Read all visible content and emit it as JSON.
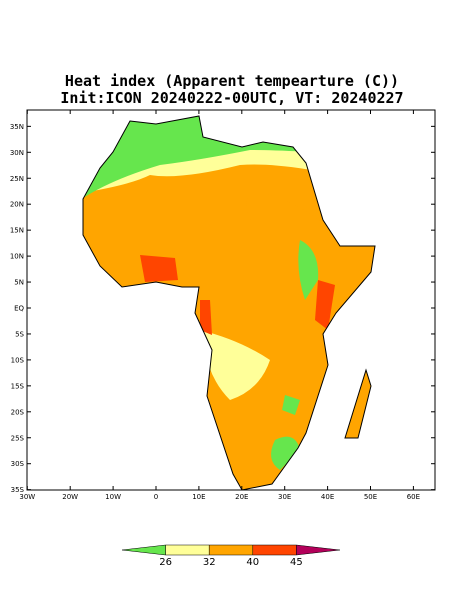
{
  "title": {
    "line1": "Heat index (Apparent tempearture (C))",
    "line2": "Init:ICON 20240222-00UTC, VT: 20240227"
  },
  "lat_ticks": [
    {
      "value": 35,
      "label": "35N"
    },
    {
      "value": 30,
      "label": "30N"
    },
    {
      "value": 25,
      "label": "25N"
    },
    {
      "value": 20,
      "label": "20N"
    },
    {
      "value": 15,
      "label": "15N"
    },
    {
      "value": 10,
      "label": "10N"
    },
    {
      "value": 5,
      "label": "5N"
    },
    {
      "value": 0,
      "label": "EQ"
    },
    {
      "value": -5,
      "label": "5S"
    },
    {
      "value": -10,
      "label": "10S"
    },
    {
      "value": -15,
      "label": "15S"
    },
    {
      "value": -20,
      "label": "20S"
    },
    {
      "value": -25,
      "label": "25S"
    },
    {
      "value": -30,
      "label": "30S"
    },
    {
      "value": -35,
      "label": "35S"
    }
  ],
  "lon_ticks": [
    {
      "value": -30,
      "label": "30W"
    },
    {
      "value": -20,
      "label": "20W"
    },
    {
      "value": -10,
      "label": "10W"
    },
    {
      "value": 0,
      "label": "0"
    },
    {
      "value": 10,
      "label": "10E"
    },
    {
      "value": 20,
      "label": "20E"
    },
    {
      "value": 30,
      "label": "30E"
    },
    {
      "value": 40,
      "label": "40E"
    },
    {
      "value": 50,
      "label": "50E"
    },
    {
      "value": 60,
      "label": "60E"
    }
  ],
  "colorbar": {
    "labels": [
      26,
      32,
      40,
      45
    ],
    "colors": [
      "#66e64d",
      "#ffff99",
      "#ffa500",
      "#ff4500",
      "#b3005a"
    ]
  }
}
